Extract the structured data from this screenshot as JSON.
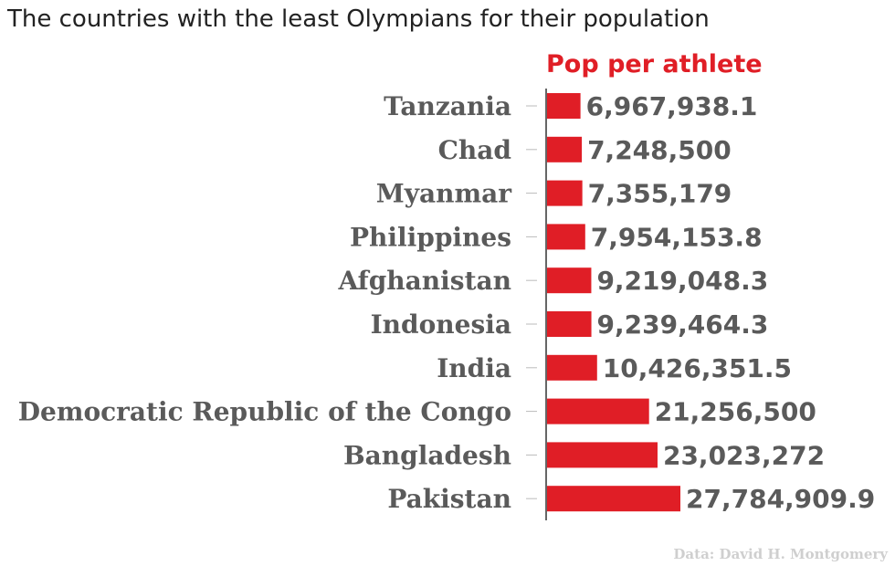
{
  "title": "The countries with the least Olympians for their population",
  "source": "Data: David H. Montgomery",
  "colors": {
    "bar": "#e01e26",
    "label": "#5a5a5a",
    "axis": "#333333",
    "source": "#cfcfcf"
  },
  "chart_data": {
    "type": "bar",
    "orientation": "horizontal",
    "title": "The countries with the least Olympians for their population",
    "series": [
      {
        "name": "Pop per athlete",
        "values": [
          6967938.1,
          7248500,
          7355179,
          7954153.8,
          9219048.3,
          9239464.3,
          10426351.5,
          21256500,
          23023272,
          27784909.9
        ]
      }
    ],
    "categories": [
      "Tanzania",
      "Chad",
      "Myanmar",
      "Philippines",
      "Afghanistan",
      "Indonesia",
      "India",
      "Democratic Republic of the Congo",
      "Bangladesh",
      "Pakistan"
    ],
    "value_labels": [
      "6,967,938.1",
      "7,248,500",
      "7,355,179",
      "7,954,153.8",
      "9,219,048.3",
      "9,239,464.3",
      "10,426,351.5",
      "21,256,500",
      "23,023,272",
      "27,784,909.9"
    ],
    "xlim": [
      0,
      27784909.9
    ],
    "grid": false,
    "legend": "top"
  }
}
